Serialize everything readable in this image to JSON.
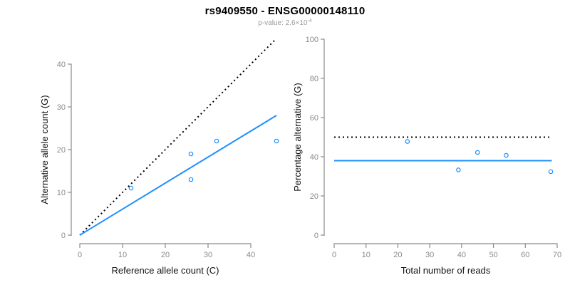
{
  "header": {
    "title": "rs9409550 - ENSG00000148110",
    "pvalue_label": "p-value: 2.6×10",
    "pvalue_exponent": "-4"
  },
  "colors": {
    "accent": "#1E90FF",
    "axis": "#8a8a8a",
    "tick_label": "#8a8a8a",
    "axis_title": "#111111",
    "reference_line": "#000000"
  },
  "chart_data": [
    {
      "id": "allele-counts",
      "type": "scatter",
      "xlabel": "Reference allele count (C)",
      "ylabel": "Alternative allele count (G)",
      "xticks": [
        0,
        10,
        20,
        30,
        40
      ],
      "yticks": [
        0,
        10,
        20,
        30,
        40
      ],
      "xlim": [
        0,
        46
      ],
      "ylim": [
        0,
        46
      ],
      "grid": false,
      "points": [
        [
          12,
          11
        ],
        [
          26,
          13
        ],
        [
          26,
          19
        ],
        [
          32,
          22
        ],
        [
          46,
          22
        ]
      ],
      "lines": [
        {
          "name": "identity-line",
          "style": "dotted",
          "color": "#000000",
          "from": [
            0,
            0
          ],
          "to": [
            45.5,
            45.5
          ]
        },
        {
          "name": "fit-line",
          "style": "solid",
          "color": "#1E90FF",
          "from": [
            0,
            0
          ],
          "to": [
            46,
            28
          ]
        }
      ]
    },
    {
      "id": "percentage",
      "type": "scatter",
      "xlabel": "Total number of reads",
      "ylabel": "Percentage alternative (G)",
      "xticks": [
        0,
        10,
        20,
        30,
        40,
        50,
        60,
        70
      ],
      "yticks": [
        0,
        20,
        40,
        60,
        80,
        100
      ],
      "xlim": [
        0,
        70
      ],
      "ylim": [
        0,
        100
      ],
      "grid": false,
      "points": [
        [
          23,
          47.8
        ],
        [
          39,
          33.3
        ],
        [
          45,
          42.2
        ],
        [
          54,
          40.7
        ],
        [
          68,
          32.4
        ]
      ],
      "lines": [
        {
          "name": "fifty-percent-line",
          "style": "dotted",
          "color": "#000000",
          "from": [
            0,
            50
          ],
          "to": [
            67.5,
            50
          ]
        },
        {
          "name": "mean-percentage-line",
          "style": "solid",
          "color": "#1E90FF",
          "from": [
            0,
            38
          ],
          "to": [
            68.3,
            38
          ]
        }
      ]
    }
  ]
}
